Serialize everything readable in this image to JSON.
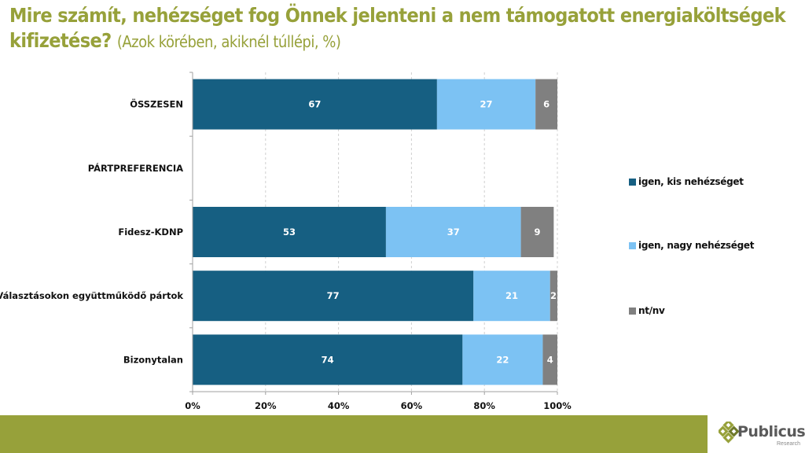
{
  "title": {
    "main": "Mire számít, nehézséget fog Önnek jelenteni a nem támogatott energiaköltségek kifizetése?",
    "sub": "(Azok körében, akiknél túllépi, %)"
  },
  "chart_data": {
    "type": "bar",
    "orientation": "horizontal",
    "stacked": true,
    "categories": [
      "ÖSSZESEN",
      "PÁRTPREFERENCIA",
      "Fidesz-KDNP",
      "Választásokon együttműködő pártok",
      "Bizonytalan"
    ],
    "series": [
      {
        "name": "igen, kis nehézséget",
        "color": "#165f82",
        "values": [
          67,
          null,
          53,
          77,
          74
        ]
      },
      {
        "name": "igen, nagy nehézséget",
        "color": "#7cc2f3",
        "values": [
          27,
          null,
          37,
          21,
          22
        ]
      },
      {
        "name": "nt/nv",
        "color": "#808080",
        "values": [
          6,
          null,
          9,
          2,
          4
        ]
      }
    ],
    "xlim": [
      0,
      100
    ],
    "xticks": [
      "0%",
      "20%",
      "40%",
      "60%",
      "80%",
      "100%"
    ],
    "grid": true,
    "legend_position": "right"
  },
  "logo": {
    "name": "Publicus",
    "sub": "Research"
  },
  "colors": {
    "accent": "#97a13a"
  }
}
